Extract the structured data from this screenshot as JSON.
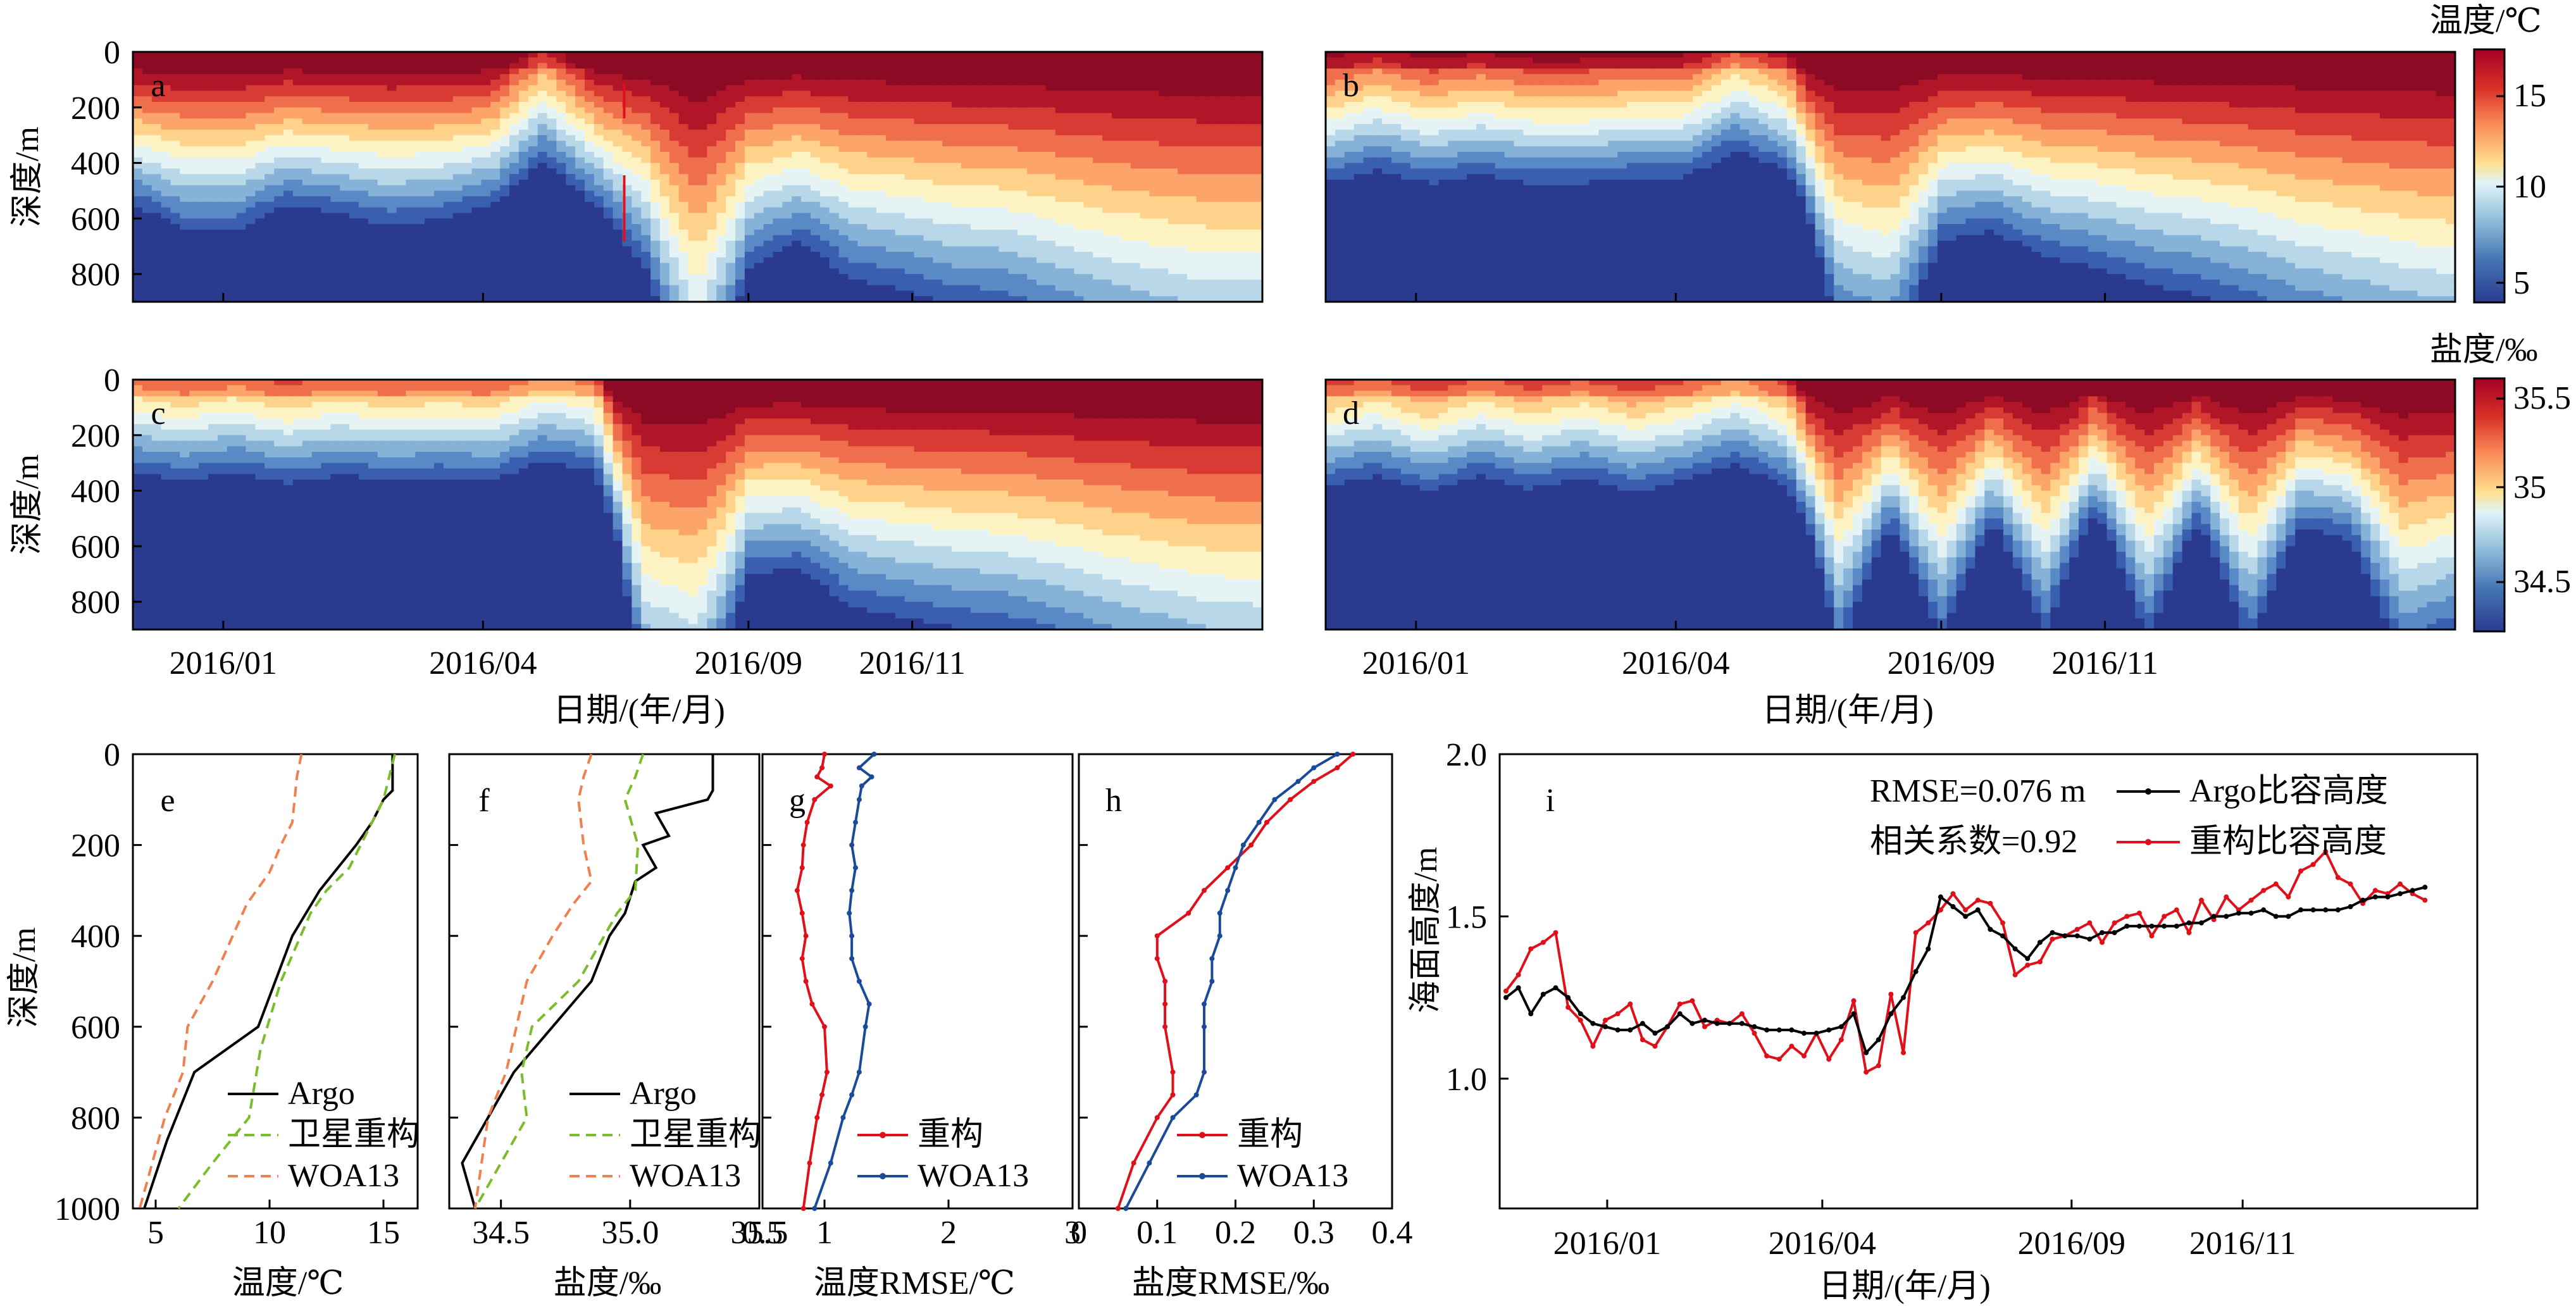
{
  "chart_data": [
    {
      "type": "heatmap",
      "panel": "a",
      "ylabel": "深度/m",
      "yticks": [
        0,
        200,
        400,
        600,
        800
      ],
      "ylim": [
        0,
        900
      ],
      "variable": "temperature",
      "palette": "RdYlBu_r",
      "value_range": [
        4,
        17
      ],
      "xlabel_shared": "日期/(年/月)",
      "xticks": [
        "2016/01",
        "2016/04",
        "2016/09",
        "2016/11"
      ],
      "time": [
        0,
        0.05,
        0.1,
        0.15,
        0.2,
        0.25,
        0.3,
        0.35,
        0.38,
        0.4,
        0.44,
        0.45,
        0.5,
        0.55,
        0.6,
        0.65,
        0.7,
        0.75,
        0.8,
        0.85,
        0.9,
        0.95,
        1.0
      ],
      "isotherm_10C_depth_m": [
        280,
        330,
        330,
        280,
        300,
        320,
        310,
        280,
        120,
        280,
        400,
        700,
        400,
        350,
        420,
        440,
        470,
        480,
        520,
        560,
        590,
        620,
        620
      ],
      "annotations": [
        "red vertical marker",
        "red vertical marker"
      ]
    },
    {
      "type": "heatmap",
      "panel": "b",
      "variable": "temperature",
      "palette": "RdYlBu_r",
      "value_range": [
        4,
        17
      ],
      "xticks": [
        "2016/01",
        "2016/04",
        "2016/09",
        "2016/11"
      ],
      "time": [
        0,
        0.05,
        0.1,
        0.15,
        0.2,
        0.25,
        0.3,
        0.35,
        0.38,
        0.4,
        0.44,
        0.45,
        0.5,
        0.55,
        0.6,
        0.65,
        0.7,
        0.75,
        0.8,
        0.85,
        0.9,
        0.95,
        1.0
      ],
      "isotherm_10C_depth_m": [
        200,
        150,
        200,
        170,
        200,
        200,
        180,
        180,
        80,
        160,
        520,
        560,
        350,
        330,
        380,
        400,
        430,
        450,
        480,
        520,
        550,
        580,
        600
      ]
    },
    {
      "type": "heatmap",
      "panel": "c",
      "ylabel": "深度/m",
      "yticks": [
        0,
        200,
        400,
        600,
        800
      ],
      "ylim": [
        0,
        900
      ],
      "variable": "salinity",
      "palette": "RdYlBu_r",
      "value_range": [
        34.25,
        35.6
      ],
      "xticks": [
        "2016/01",
        "2016/04",
        "2016/09",
        "2016/11"
      ],
      "time": [
        0,
        0.05,
        0.1,
        0.15,
        0.2,
        0.25,
        0.3,
        0.35,
        0.38,
        0.4,
        0.44,
        0.45,
        0.5,
        0.55,
        0.6,
        0.65,
        0.7,
        0.75,
        0.8,
        0.85,
        0.9,
        0.95,
        1.0
      ],
      "isohaline_35_depth_m": [
        60,
        90,
        60,
        100,
        70,
        90,
        80,
        90,
        20,
        60,
        600,
        660,
        360,
        350,
        420,
        440,
        460,
        470,
        500,
        540,
        570,
        600,
        610
      ]
    },
    {
      "type": "heatmap",
      "panel": "d",
      "variable": "salinity",
      "palette": "RdYlBu_r",
      "value_range": [
        34.25,
        35.6
      ],
      "xticks": [
        "2016/01",
        "2016/04",
        "2016/09",
        "2016/11"
      ],
      "time": [
        0,
        0.05,
        0.1,
        0.15,
        0.2,
        0.25,
        0.3,
        0.35,
        0.38,
        0.4,
        0.44,
        0.45,
        0.5,
        0.55,
        0.6,
        0.65,
        0.7,
        0.75,
        0.8,
        0.85,
        0.9,
        0.95,
        1.0
      ],
      "isohaline_35_depth_m": [
        110,
        70,
        130,
        70,
        120,
        80,
        130,
        90,
        30,
        110,
        500,
        260,
        480,
        250,
        470,
        220,
        480,
        250,
        490,
        260,
        300,
        520,
        470
      ]
    },
    {
      "type": "line",
      "panel": "e",
      "xlabel": "温度/℃",
      "ylabel": "深度/m",
      "xlim": [
        4,
        16.5
      ],
      "ylim": [
        0,
        1000
      ],
      "xticks": [
        5,
        10,
        15
      ],
      "yticks": [
        0,
        200,
        400,
        600,
        800,
        1000
      ],
      "legend": "bottom-right",
      "series": [
        {
          "name": "Argo",
          "color": "#000000",
          "dash": "solid",
          "x": [
            15.4,
            15.4,
            15.0,
            14.5,
            13.8,
            13.0,
            12.2,
            11.0,
            9.5,
            6.7,
            5.5,
            4.5
          ],
          "y": [
            0,
            80,
            100,
            150,
            200,
            250,
            300,
            400,
            600,
            700,
            850,
            1000
          ]
        },
        {
          "name": "卫星重构",
          "color": "#7cbc2c",
          "dash": "dashed",
          "x": [
            15.5,
            15.0,
            14.0,
            13.5,
            12.5,
            11.8,
            10.5,
            9.6,
            9.1,
            7.5,
            6.0
          ],
          "y": [
            0,
            100,
            200,
            250,
            300,
            350,
            500,
            650,
            800,
            900,
            1000
          ]
        },
        {
          "name": "WOA13",
          "color": "#f08050",
          "dash": "dashed",
          "x": [
            11.4,
            11.2,
            11.0,
            10.5,
            10.0,
            9.0,
            7.5,
            6.4,
            6.2,
            5.4,
            4.3
          ],
          "y": [
            0,
            50,
            150,
            200,
            260,
            330,
            500,
            600,
            700,
            800,
            1000
          ]
        }
      ]
    },
    {
      "type": "line",
      "panel": "f",
      "xlabel": "盐度/‰",
      "xlim": [
        34.3,
        35.5
      ],
      "ylim": [
        0,
        1000
      ],
      "xticks": [
        "34.5",
        "35.0",
        "35.5"
      ],
      "yticks": [
        0,
        200,
        400,
        600,
        800,
        1000
      ],
      "legend": "bottom-right",
      "series": [
        {
          "name": "Argo",
          "color": "#000000",
          "dash": "solid",
          "x": [
            35.32,
            35.32,
            35.3,
            35.1,
            35.15,
            35.05,
            35.1,
            35.02,
            34.98,
            34.92,
            34.85,
            34.7,
            34.55,
            34.45,
            34.4,
            34.35,
            34.4
          ],
          "y": [
            0,
            80,
            100,
            130,
            180,
            200,
            250,
            280,
            350,
            400,
            500,
            600,
            700,
            800,
            850,
            900,
            1000
          ]
        },
        {
          "name": "卫星重构",
          "color": "#7cbc2c",
          "dash": "dashed",
          "x": [
            35.05,
            35.02,
            34.98,
            35.03,
            35.02,
            34.95,
            34.8,
            34.62,
            34.58,
            34.6,
            34.4
          ],
          "y": [
            0,
            50,
            100,
            200,
            300,
            350,
            500,
            600,
            700,
            800,
            1000
          ]
        },
        {
          "name": "WOA13",
          "color": "#f08050",
          "dash": "dashed",
          "x": [
            34.85,
            34.82,
            34.8,
            34.82,
            34.85,
            34.78,
            34.7,
            34.6,
            34.52,
            34.45,
            34.4
          ],
          "y": [
            0,
            50,
            100,
            200,
            280,
            330,
            400,
            500,
            700,
            800,
            1000
          ]
        }
      ]
    },
    {
      "type": "line",
      "panel": "g",
      "xlabel": "温度RMSE/℃",
      "xlim": [
        0.5,
        3
      ],
      "ylim": [
        0,
        1000
      ],
      "xticks": [
        "0.5",
        "1",
        "2",
        "3"
      ],
      "yticks": [
        0,
        200,
        400,
        600,
        800,
        1000
      ],
      "legend": "bottom-right",
      "series": [
        {
          "name": "重构",
          "color": "#e0101a",
          "dash": "solid",
          "markers": true,
          "x": [
            1.0,
            0.98,
            0.94,
            1.05,
            0.92,
            0.86,
            0.83,
            0.82,
            0.78,
            0.82,
            0.85,
            0.82,
            0.85,
            0.9,
            1.0,
            1.02,
            0.98,
            0.94,
            0.88,
            0.83
          ],
          "y": [
            0,
            30,
            50,
            70,
            100,
            150,
            200,
            250,
            300,
            350,
            400,
            450,
            500,
            550,
            600,
            700,
            750,
            800,
            900,
            1000
          ]
        },
        {
          "name": "WOA13",
          "color": "#1a4a9a",
          "dash": "solid",
          "markers": true,
          "x": [
            1.4,
            1.28,
            1.38,
            1.3,
            1.28,
            1.25,
            1.22,
            1.25,
            1.22,
            1.2,
            1.22,
            1.22,
            1.28,
            1.36,
            1.33,
            1.28,
            1.22,
            1.15,
            1.05,
            0.92
          ],
          "y": [
            0,
            30,
            50,
            70,
            100,
            150,
            200,
            250,
            300,
            350,
            400,
            450,
            500,
            550,
            600,
            700,
            750,
            800,
            900,
            1000
          ]
        }
      ]
    },
    {
      "type": "line",
      "panel": "h",
      "xlabel": "盐度RMSE/‰",
      "xlim": [
        0,
        0.4
      ],
      "ylim": [
        0,
        1000
      ],
      "xticks": [
        "0",
        "0.1",
        "0.2",
        "0.3",
        "0.4"
      ],
      "yticks": [
        0,
        200,
        400,
        600,
        800,
        1000
      ],
      "legend": "bottom-right",
      "series": [
        {
          "name": "重构",
          "color": "#e0101a",
          "dash": "solid",
          "markers": true,
          "x": [
            0.35,
            0.33,
            0.3,
            0.27,
            0.24,
            0.22,
            0.19,
            0.16,
            0.14,
            0.1,
            0.1,
            0.11,
            0.11,
            0.11,
            0.12,
            0.12,
            0.1,
            0.07,
            0.05
          ],
          "y": [
            0,
            30,
            60,
            100,
            150,
            200,
            250,
            300,
            350,
            400,
            450,
            500,
            550,
            600,
            700,
            750,
            800,
            900,
            1000
          ]
        },
        {
          "name": "WOA13",
          "color": "#1a4a9a",
          "dash": "solid",
          "markers": true,
          "x": [
            0.33,
            0.3,
            0.28,
            0.25,
            0.23,
            0.21,
            0.2,
            0.19,
            0.18,
            0.18,
            0.17,
            0.17,
            0.16,
            0.16,
            0.16,
            0.15,
            0.12,
            0.09,
            0.06
          ],
          "y": [
            0,
            30,
            60,
            100,
            150,
            200,
            250,
            300,
            350,
            400,
            450,
            500,
            550,
            600,
            700,
            750,
            800,
            900,
            1000
          ]
        }
      ]
    },
    {
      "type": "line",
      "panel": "i",
      "xlabel": "日期/(年/月)",
      "ylabel": "海面高度/m",
      "ylim": [
        0.6,
        2.0
      ],
      "yticks": [
        "1.0",
        "1.5",
        "2.0"
      ],
      "xticks": [
        "2016/01",
        "2016/04",
        "2016/09",
        "2016/11"
      ],
      "annotations": [
        "RMSE=0.076 m",
        "相关系数=0.92"
      ],
      "legend": "top-right",
      "series": [
        {
          "name": "Argo比容高度",
          "color": "#000000",
          "markers": true,
          "values": [
            1.25,
            1.28,
            1.2,
            1.26,
            1.28,
            1.25,
            1.2,
            1.17,
            1.16,
            1.15,
            1.15,
            1.17,
            1.14,
            1.16,
            1.2,
            1.17,
            1.18,
            1.17,
            1.17,
            1.17,
            1.16,
            1.15,
            1.15,
            1.15,
            1.14,
            1.14,
            1.15,
            1.16,
            1.2,
            1.08,
            1.12,
            1.2,
            1.25,
            1.33,
            1.4,
            1.56,
            1.53,
            1.5,
            1.52,
            1.46,
            1.44,
            1.4,
            1.37,
            1.42,
            1.45,
            1.44,
            1.44,
            1.43,
            1.45,
            1.45,
            1.47,
            1.47,
            1.47,
            1.47,
            1.47,
            1.48,
            1.48,
            1.5,
            1.5,
            1.51,
            1.51,
            1.52,
            1.5,
            1.5,
            1.52,
            1.52,
            1.52,
            1.52,
            1.53,
            1.55,
            1.56,
            1.56,
            1.57,
            1.58,
            1.59
          ]
        },
        {
          "name": "重构比容高度",
          "color": "#e0101a",
          "markers": true,
          "values": [
            1.27,
            1.32,
            1.4,
            1.42,
            1.45,
            1.22,
            1.18,
            1.1,
            1.18,
            1.2,
            1.23,
            1.12,
            1.1,
            1.16,
            1.23,
            1.24,
            1.16,
            1.18,
            1.17,
            1.2,
            1.14,
            1.07,
            1.06,
            1.1,
            1.07,
            1.14,
            1.06,
            1.12,
            1.24,
            1.02,
            1.04,
            1.26,
            1.08,
            1.45,
            1.48,
            1.52,
            1.57,
            1.52,
            1.55,
            1.54,
            1.48,
            1.32,
            1.35,
            1.36,
            1.43,
            1.44,
            1.46,
            1.48,
            1.42,
            1.48,
            1.5,
            1.51,
            1.44,
            1.5,
            1.52,
            1.45,
            1.55,
            1.49,
            1.56,
            1.52,
            1.55,
            1.58,
            1.6,
            1.56,
            1.64,
            1.66,
            1.7,
            1.62,
            1.6,
            1.54,
            1.58,
            1.57,
            1.6,
            1.57,
            1.55
          ]
        }
      ]
    }
  ],
  "labels": {
    "depth": "深度/m",
    "date": "日期/(年/月)",
    "colorbar_temp_title": "温度/℃",
    "colorbar_sal_title": "盐度/‰",
    "colorbar_temp_ticks": [
      "15",
      "10",
      "5"
    ],
    "colorbar_sal_ticks": [
      "35.5",
      "35",
      "34.5"
    ],
    "panel_a": "a",
    "panel_b": "b",
    "panel_c": "c",
    "panel_d": "d",
    "panel_e": "e",
    "panel_f": "f",
    "panel_g": "g",
    "panel_h": "h",
    "panel_i": "i",
    "temp_x": "温度/℃",
    "sal_x": "盐度/‰",
    "trmse_x": "温度RMSE/℃",
    "srmse_x": "盐度RMSE/‰",
    "ssh_y": "海面高度/m",
    "rmse_note": "RMSE=0.076 m",
    "corr_note": "相关系数=0.92",
    "colors": {
      "red": "#e0101a",
      "blue": "#1a4a9a",
      "green": "#7cbc2c",
      "orange": "#f08050",
      "black": "#000000"
    }
  }
}
